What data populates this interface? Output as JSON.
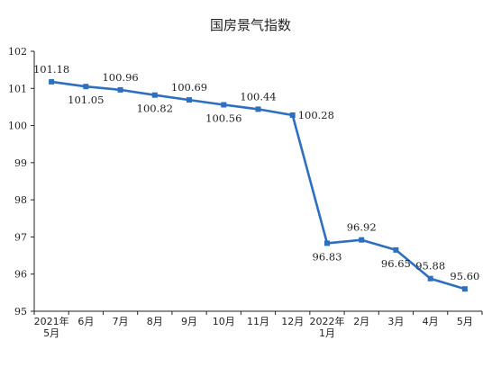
{
  "chart_data": {
    "type": "line",
    "title": "国房景气指数",
    "xlabel": "",
    "ylabel": "",
    "categories": [
      [
        "2021年",
        "5月"
      ],
      [
        "6月"
      ],
      [
        "7月"
      ],
      [
        "8月"
      ],
      [
        "9月"
      ],
      [
        "10月"
      ],
      [
        "11月"
      ],
      [
        "12月"
      ],
      [
        "2022年",
        "1月"
      ],
      [
        "2月"
      ],
      [
        "3月"
      ],
      [
        "4月"
      ],
      [
        "5月"
      ]
    ],
    "series": [
      {
        "values": [
          101.18,
          101.05,
          100.96,
          100.82,
          100.69,
          100.56,
          100.44,
          100.28,
          96.83,
          96.92,
          96.65,
          95.88,
          95.6
        ],
        "labels": [
          "101.18",
          "101.05",
          "100.96",
          "100.82",
          "100.69",
          "100.56",
          "100.44",
          "100.28",
          "96.83",
          "96.92",
          "96.65",
          "95.88",
          "95.60"
        ],
        "label_position": [
          "above",
          "below",
          "above",
          "below",
          "above",
          "below",
          "above",
          "right",
          "below",
          "above",
          "below",
          "above",
          "above"
        ],
        "color": "#2e6fbf"
      }
    ],
    "ylim": [
      95,
      102
    ],
    "yticks": [
      95,
      96,
      97,
      98,
      99,
      100,
      101,
      102
    ],
    "grid": false,
    "legend": "none"
  }
}
